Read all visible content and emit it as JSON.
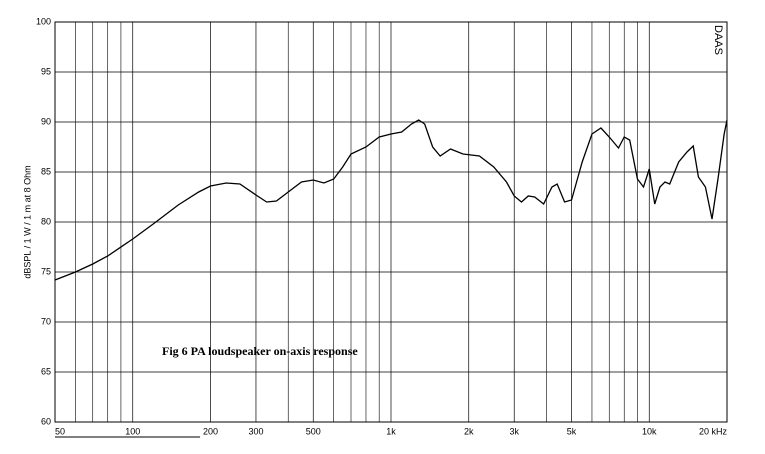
{
  "chart_data": {
    "type": "line",
    "ylabel": "dBSPL / 1 W / 1 m at 8 Ohm",
    "annotation": "Fig 6 PA loudspeaker on-axis response",
    "watermark": "DAAS",
    "xscale": "log",
    "grid": true,
    "xlim": [
      50,
      20000
    ],
    "ylim": [
      60,
      100
    ],
    "yticks": [
      60,
      65,
      70,
      75,
      80,
      85,
      90,
      95,
      100
    ],
    "xticks": [
      50,
      100,
      200,
      300,
      500,
      {
        "value": 1000,
        "label": "1k"
      },
      {
        "value": 2000,
        "label": "2k"
      },
      {
        "value": 3000,
        "label": "3k"
      },
      {
        "value": 5000,
        "label": "5k"
      },
      {
        "value": 10000,
        "label": "10k"
      },
      {
        "value": 20000,
        "label": "20 kHz"
      }
    ],
    "xminor": [
      60,
      70,
      80,
      90,
      400,
      600,
      700,
      800,
      900,
      4000,
      6000,
      7000,
      8000,
      9000
    ],
    "x": [
      50,
      60,
      70,
      80,
      100,
      120,
      150,
      180,
      200,
      230,
      260,
      300,
      330,
      360,
      400,
      450,
      500,
      550,
      600,
      650,
      700,
      800,
      900,
      1000,
      1100,
      1200,
      1280,
      1350,
      1450,
      1550,
      1700,
      1900,
      2200,
      2500,
      2800,
      3000,
      3200,
      3400,
      3600,
      3900,
      4200,
      4400,
      4700,
      5000,
      5500,
      6000,
      6500,
      7000,
      7600,
      8000,
      8400,
      9000,
      9500,
      10000,
      10500,
      11000,
      11500,
      12000,
      13000,
      14000,
      14800,
      15500,
      16500,
      17500,
      18500,
      19500,
      20000
    ],
    "series": [
      {
        "color": "#000000",
        "values": [
          74.2,
          75,
          75.8,
          76.6,
          78.3,
          79.8,
          81.7,
          83,
          83.6,
          83.9,
          83.8,
          82.7,
          82,
          82.1,
          83,
          84,
          84.2,
          83.9,
          84.3,
          85.5,
          86.8,
          87.5,
          88.5,
          88.8,
          89,
          89.8,
          90.2,
          89.8,
          87.5,
          86.6,
          87.3,
          86.8,
          86.6,
          85.5,
          84,
          82.6,
          82,
          82.6,
          82.5,
          81.8,
          83.5,
          83.8,
          82,
          82.2,
          86,
          88.8,
          89.4,
          88.5,
          87.4,
          88.5,
          88.2,
          84.3,
          83.5,
          85.3,
          81.8,
          83.5,
          84,
          83.8,
          86,
          87,
          87.6,
          84.5,
          83.5,
          80.3,
          84.5,
          88.8,
          90.2
        ]
      }
    ]
  }
}
